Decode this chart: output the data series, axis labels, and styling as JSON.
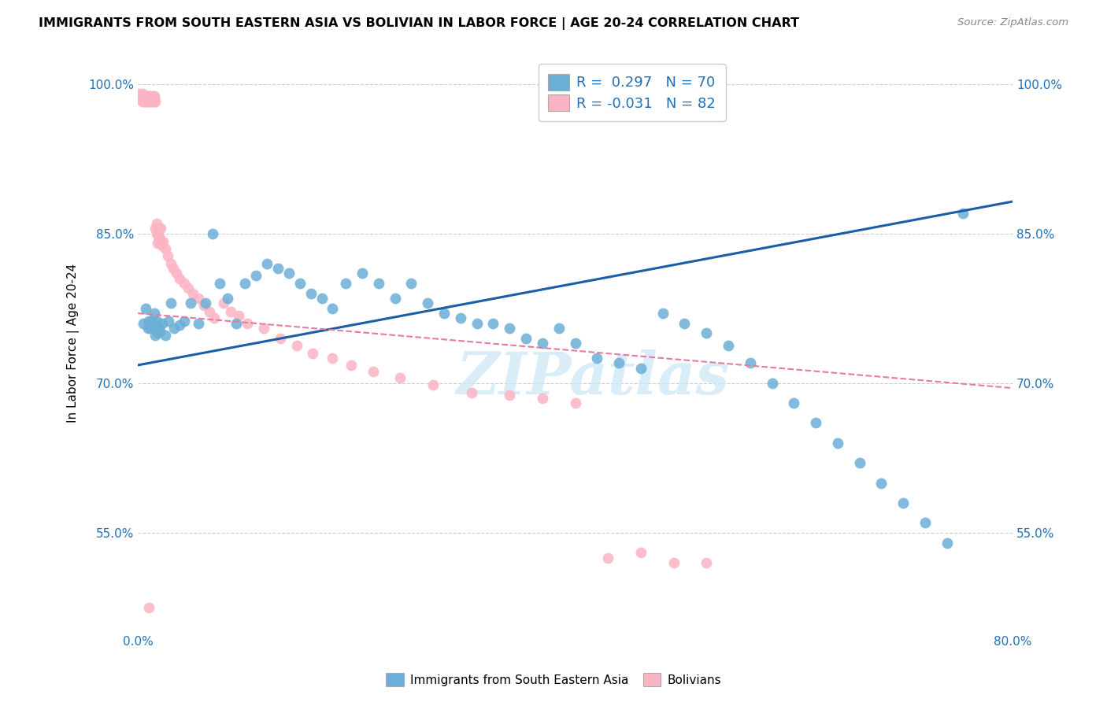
{
  "title": "IMMIGRANTS FROM SOUTH EASTERN ASIA VS BOLIVIAN IN LABOR FORCE | AGE 20-24 CORRELATION CHART",
  "source": "Source: ZipAtlas.com",
  "ylabel": "In Labor Force | Age 20-24",
  "xmin": 0.0,
  "xmax": 0.8,
  "ymin": 0.45,
  "ymax": 1.03,
  "yticks": [
    0.55,
    0.7,
    0.85,
    1.0
  ],
  "ytick_labels": [
    "55.0%",
    "70.0%",
    "85.0%",
    "100.0%"
  ],
  "xticks": [
    0.0,
    0.1,
    0.2,
    0.3,
    0.4,
    0.5,
    0.6,
    0.7,
    0.8
  ],
  "xtick_labels": [
    "0.0%",
    "",
    "",
    "",
    "",
    "",
    "",
    "",
    "80.0%"
  ],
  "blue_R": 0.297,
  "blue_N": 70,
  "pink_R": -0.031,
  "pink_N": 82,
  "blue_color": "#6baed6",
  "pink_color": "#fbb4c3",
  "blue_line_color": "#1a5ea8",
  "pink_line_color": "#e87aa0",
  "watermark": "ZIPatlas",
  "legend_label_blue": "Immigrants from South Eastern Asia",
  "legend_label_pink": "Bolivians",
  "blue_x": [
    0.005,
    0.007,
    0.009,
    0.01,
    0.011,
    0.012,
    0.013,
    0.014,
    0.015,
    0.016,
    0.017,
    0.018,
    0.019,
    0.02,
    0.022,
    0.025,
    0.028,
    0.03,
    0.033,
    0.038,
    0.042,
    0.048,
    0.055,
    0.062,
    0.068,
    0.075,
    0.082,
    0.09,
    0.098,
    0.108,
    0.118,
    0.128,
    0.138,
    0.148,
    0.158,
    0.168,
    0.178,
    0.19,
    0.205,
    0.22,
    0.235,
    0.25,
    0.265,
    0.28,
    0.295,
    0.31,
    0.325,
    0.34,
    0.355,
    0.37,
    0.385,
    0.4,
    0.42,
    0.44,
    0.46,
    0.48,
    0.5,
    0.52,
    0.54,
    0.56,
    0.58,
    0.6,
    0.62,
    0.64,
    0.66,
    0.68,
    0.7,
    0.72,
    0.74,
    0.755
  ],
  "blue_y": [
    0.76,
    0.775,
    0.755,
    0.762,
    0.755,
    0.758,
    0.762,
    0.756,
    0.77,
    0.748,
    0.762,
    0.75,
    0.756,
    0.752,
    0.76,
    0.748,
    0.762,
    0.78,
    0.755,
    0.758,
    0.762,
    0.78,
    0.76,
    0.78,
    0.85,
    0.8,
    0.785,
    0.76,
    0.8,
    0.808,
    0.82,
    0.815,
    0.81,
    0.8,
    0.79,
    0.785,
    0.775,
    0.8,
    0.81,
    0.8,
    0.785,
    0.8,
    0.78,
    0.77,
    0.765,
    0.76,
    0.76,
    0.755,
    0.745,
    0.74,
    0.755,
    0.74,
    0.725,
    0.72,
    0.715,
    0.77,
    0.76,
    0.75,
    0.738,
    0.72,
    0.7,
    0.68,
    0.66,
    0.64,
    0.62,
    0.6,
    0.58,
    0.56,
    0.54,
    0.87
  ],
  "pink_x": [
    0.001,
    0.002,
    0.003,
    0.003,
    0.004,
    0.004,
    0.005,
    0.005,
    0.005,
    0.006,
    0.006,
    0.007,
    0.007,
    0.007,
    0.008,
    0.008,
    0.008,
    0.009,
    0.009,
    0.01,
    0.01,
    0.01,
    0.011,
    0.011,
    0.012,
    0.012,
    0.012,
    0.013,
    0.013,
    0.014,
    0.014,
    0.015,
    0.015,
    0.015,
    0.016,
    0.016,
    0.017,
    0.017,
    0.018,
    0.018,
    0.019,
    0.019,
    0.02,
    0.02,
    0.021,
    0.022,
    0.023,
    0.025,
    0.027,
    0.03,
    0.032,
    0.035,
    0.038,
    0.042,
    0.046,
    0.05,
    0.055,
    0.06,
    0.065,
    0.07,
    0.078,
    0.085,
    0.092,
    0.1,
    0.115,
    0.13,
    0.145,
    0.16,
    0.178,
    0.195,
    0.215,
    0.24,
    0.27,
    0.305,
    0.34,
    0.37,
    0.4,
    0.43,
    0.46,
    0.49,
    0.52,
    0.01
  ],
  "pink_y": [
    0.99,
    0.985,
    0.988,
    0.985,
    0.99,
    0.982,
    0.988,
    0.985,
    0.982,
    0.988,
    0.985,
    0.982,
    0.988,
    0.985,
    0.982,
    0.988,
    0.985,
    0.988,
    0.982,
    0.985,
    0.988,
    0.982,
    0.985,
    0.988,
    0.982,
    0.985,
    0.988,
    0.985,
    0.982,
    0.988,
    0.985,
    0.982,
    0.985,
    0.988,
    0.982,
    0.855,
    0.85,
    0.86,
    0.84,
    0.85,
    0.845,
    0.855,
    0.84,
    0.845,
    0.855,
    0.838,
    0.842,
    0.835,
    0.828,
    0.82,
    0.815,
    0.81,
    0.805,
    0.8,
    0.795,
    0.79,
    0.785,
    0.778,
    0.772,
    0.765,
    0.78,
    0.772,
    0.768,
    0.76,
    0.755,
    0.745,
    0.738,
    0.73,
    0.725,
    0.718,
    0.712,
    0.705,
    0.698,
    0.69,
    0.688,
    0.685,
    0.68,
    0.525,
    0.53,
    0.52,
    0.52,
    0.475
  ]
}
